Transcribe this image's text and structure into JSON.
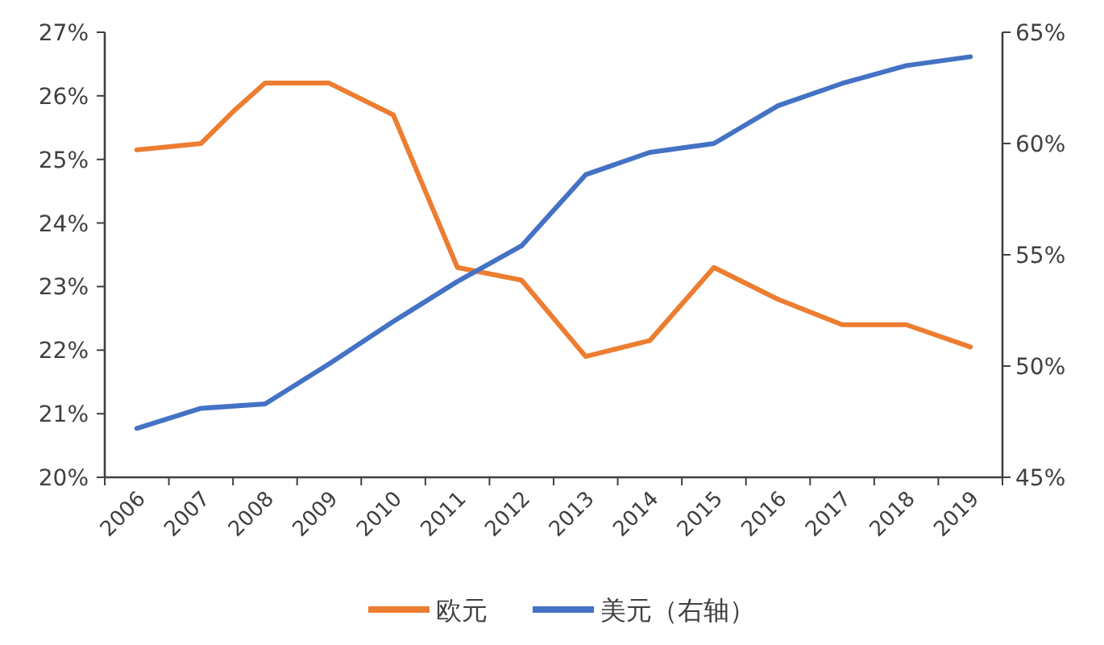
{
  "chart_data": {
    "type": "line",
    "xlim": [
      2005.5,
      2019.5
    ],
    "xticks": [
      2006,
      2007,
      2008,
      2009,
      2010,
      2011,
      2012,
      2013,
      2014,
      2015,
      2016,
      2017,
      2018,
      2019,
      {
        "value": 2005.5,
        "label": null
      },
      {
        "value": 2006.5,
        "label": null
      },
      {
        "value": 2007.5,
        "label": null
      },
      {
        "value": 2008.5,
        "label": null
      },
      {
        "value": 2009.5,
        "label": null
      },
      {
        "value": 2010.5,
        "label": null
      },
      {
        "value": 2011.5,
        "label": null
      },
      {
        "value": 2012.5,
        "label": null
      },
      {
        "value": 2013.5,
        "label": null
      },
      {
        "value": 2014.5,
        "label": null
      },
      {
        "value": 2015.5,
        "label": null
      },
      {
        "value": 2016.5,
        "label": null
      },
      {
        "value": 2017.5,
        "label": null
      },
      {
        "value": 2018.5,
        "label": null
      },
      {
        "value": 2019.5,
        "label": null
      }
    ],
    "ylim": [
      20,
      27
    ],
    "yticks": [
      {
        "value": 20,
        "label": "20%"
      },
      {
        "value": 21,
        "label": "21%"
      },
      {
        "value": 22,
        "label": "22%"
      },
      {
        "value": 23,
        "label": "23%"
      },
      {
        "value": 24,
        "label": "24%"
      },
      {
        "value": 25,
        "label": "25%"
      },
      {
        "value": 26,
        "label": "26%"
      },
      {
        "value": 27,
        "label": "27%"
      }
    ],
    "y2lim": [
      45,
      65
    ],
    "y2ticks": [
      {
        "value": 45,
        "label": "45%"
      },
      {
        "value": 50,
        "label": "50%"
      },
      {
        "value": 55,
        "label": "55%"
      },
      {
        "value": 60,
        "label": "60%"
      },
      {
        "value": 65,
        "label": "65%"
      }
    ],
    "legend": "bottom",
    "grid": false,
    "series": [
      {
        "name": "欧元",
        "color": "#ed7d31",
        "x": [
          2006,
          2006.5,
          2007,
          2007.5,
          2008,
          2009,
          2010,
          2011,
          2012,
          2013,
          2014,
          2015,
          2016,
          2017,
          2018,
          2019
        ],
        "values": [
          25.15,
          25.2,
          25.25,
          25.75,
          26.2,
          26.2,
          25.7,
          23.3,
          23.1,
          21.9,
          22.15,
          23.3,
          22.8,
          22.4,
          22.4,
          22.05
        ]
      },
      {
        "name": "美元（右轴）",
        "color": "#4472c4",
        "axis": "y2",
        "x": [
          2006,
          2007,
          2008,
          2009,
          2010,
          2011,
          2012,
          2013,
          2014,
          2015,
          2016,
          2017,
          2018,
          2019
        ],
        "values": [
          47.2,
          48.1,
          48.3,
          50.1,
          52.0,
          53.8,
          55.4,
          58.6,
          59.6,
          60.0,
          61.7,
          62.7,
          63.5,
          63.9
        ]
      }
    ]
  }
}
